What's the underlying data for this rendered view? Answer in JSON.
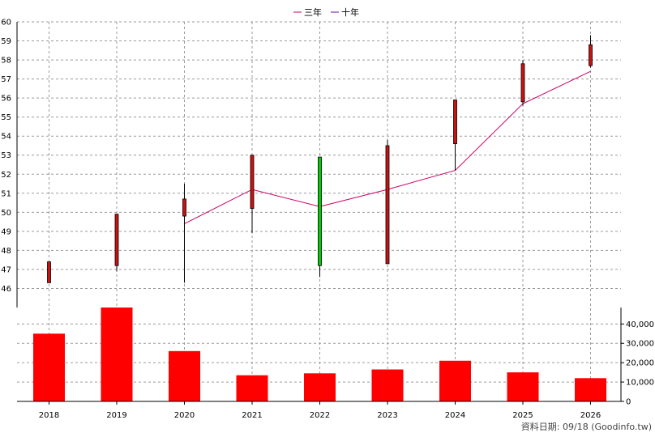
{
  "legend": [
    {
      "label": "三年",
      "color": "#cc0066"
    },
    {
      "label": "十年",
      "color": "#6a0dad"
    }
  ],
  "footer": "資料日期: 09/18 (Goodinfo.tw)",
  "chart_data": [
    {
      "type": "candlestick",
      "categories": [
        "2018",
        "2019",
        "2020",
        "2021",
        "2022",
        "2023",
        "2024",
        "2025",
        "2026"
      ],
      "ylim": [
        45,
        60
      ],
      "yticks": [
        46,
        47,
        48,
        49,
        50,
        51,
        52,
        53,
        54,
        55,
        56,
        57,
        58,
        59,
        60
      ],
      "grid": true,
      "legend_position": "top-center",
      "candles": [
        {
          "open": 47.4,
          "high": 47.4,
          "low": 46.3,
          "close": 46.3,
          "color": "#cc1111"
        },
        {
          "open": 49.9,
          "high": 49.9,
          "low": 46.9,
          "close": 47.2,
          "color": "#cc1111"
        },
        {
          "open": 50.7,
          "high": 51.5,
          "low": 46.3,
          "close": 49.8,
          "color": "#cc1111"
        },
        {
          "open": 53.0,
          "high": 53.0,
          "low": 48.9,
          "close": 50.2,
          "color": "#cc1111"
        },
        {
          "open": 47.2,
          "high": 52.9,
          "low": 46.6,
          "close": 52.9,
          "color": "#00cc00"
        },
        {
          "open": 53.5,
          "high": 53.8,
          "low": 47.3,
          "close": 47.3,
          "color": "#cc1111"
        },
        {
          "open": 55.9,
          "high": 55.9,
          "low": 52.2,
          "close": 53.6,
          "color": "#cc1111"
        },
        {
          "open": 57.8,
          "high": 58.0,
          "low": 55.6,
          "close": 55.8,
          "color": "#cc1111"
        },
        {
          "open": 58.8,
          "high": 59.3,
          "low": 57.6,
          "close": 57.7,
          "color": "#cc1111"
        }
      ],
      "series": [
        {
          "name": "三年",
          "color": "#cc0066",
          "values": [
            null,
            null,
            49.4,
            51.2,
            50.3,
            51.2,
            52.2,
            55.7,
            57.4
          ]
        }
      ]
    },
    {
      "type": "bar",
      "categories": [
        "2018",
        "2019",
        "2020",
        "2021",
        "2022",
        "2023",
        "2024",
        "2025",
        "2026"
      ],
      "values": [
        35000,
        48500,
        26000,
        13500,
        14500,
        16500,
        21000,
        15000,
        12000
      ],
      "color": "#ff0000",
      "ylim": [
        0,
        48500
      ],
      "yticks": [
        0,
        10000,
        20000,
        30000,
        40000
      ],
      "yticklabels": [
        "0",
        "10,000",
        "20,000",
        "30,000",
        "40,000"
      ],
      "grid": true
    }
  ]
}
